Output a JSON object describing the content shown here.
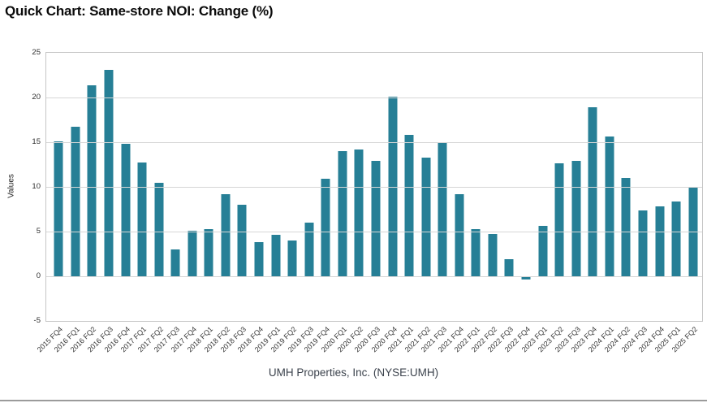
{
  "header": {
    "title": "Quick Chart: Same-store NOI: Change (%)"
  },
  "chart_data": {
    "type": "bar",
    "title": "Quick Chart: Same-store NOI: Change (%)",
    "categories": [
      "2015 FQ4",
      "2016 FQ1",
      "2016 FQ2",
      "2016 FQ3",
      "2016 FQ4",
      "2017 FQ1",
      "2017 FQ2",
      "2017 FQ3",
      "2017 FQ4",
      "2018 FQ1",
      "2018 FQ2",
      "2018 FQ3",
      "2018 FQ4",
      "2019 FQ1",
      "2019 FQ2",
      "2019 FQ3",
      "2019 FQ4",
      "2020 FQ1",
      "2020 FQ2",
      "2020 FQ3",
      "2020 FQ4",
      "2021 FQ1",
      "2021 FQ2",
      "2021 FQ3",
      "2021 FQ4",
      "2022 FQ1",
      "2022 FQ2",
      "2022 FQ3",
      "2022 FQ4",
      "2023 FQ1",
      "2023 FQ2",
      "2023 FQ3",
      "2023 FQ4",
      "2024 FQ1",
      "2024 FQ2",
      "2024 FQ3",
      "2024 FQ4",
      "2025 FQ1",
      "2025 FQ2"
    ],
    "values": [
      15.1,
      16.7,
      21.4,
      23.1,
      14.8,
      12.7,
      10.5,
      3.0,
      5.1,
      5.3,
      9.2,
      8.0,
      3.8,
      4.6,
      4.0,
      6.0,
      10.9,
      14.0,
      14.2,
      12.9,
      20.1,
      15.8,
      13.3,
      14.9,
      9.2,
      5.3,
      4.7,
      1.9,
      -0.4,
      5.6,
      12.6,
      12.9,
      18.9,
      15.6,
      11.0,
      7.4,
      7.8,
      8.4,
      9.9
    ],
    "ylabel": "Values",
    "xlabel": "UMH Properties, Inc. (NYSE:UMH)",
    "ylim": [
      -5,
      25
    ],
    "yticks": [
      25,
      20,
      15,
      10,
      5,
      0,
      -5
    ],
    "grid": true,
    "legend": "none",
    "bar_color": "#267F96"
  }
}
